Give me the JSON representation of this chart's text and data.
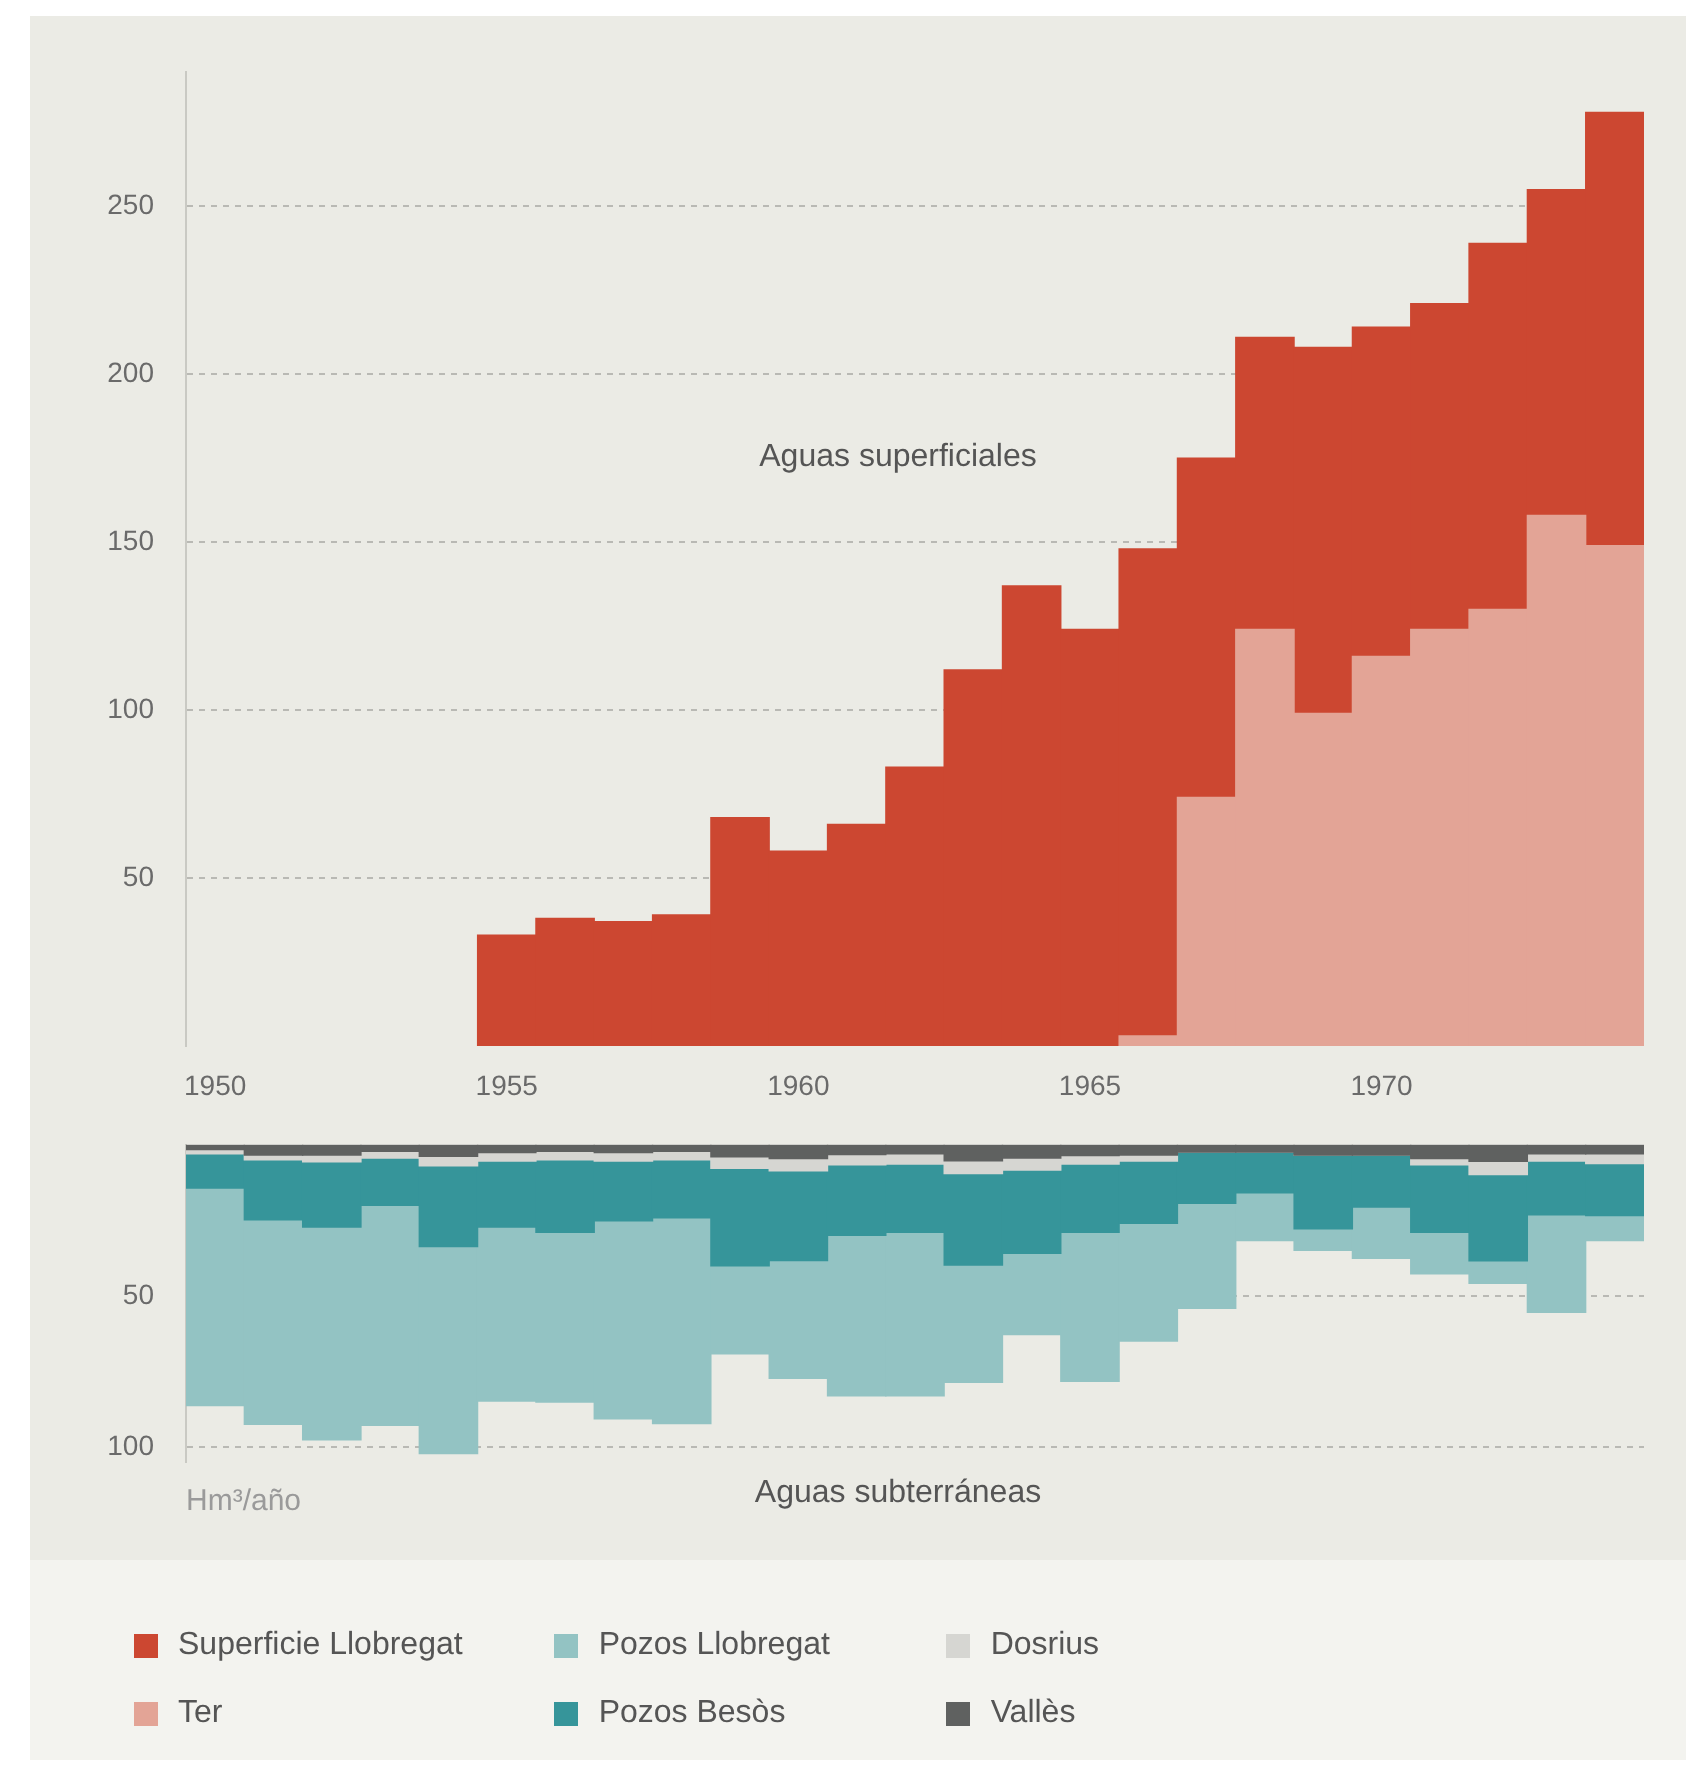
{
  "chart_data": [
    {
      "type": "bar",
      "stacked": true,
      "categories": [
        "1950",
        null,
        null,
        null,
        null,
        "1955",
        null,
        null,
        null,
        null,
        "1960",
        null,
        null,
        null,
        null,
        "1965",
        null,
        null,
        null,
        null,
        "1970",
        null,
        null,
        null,
        null
      ],
      "series": [
        {
          "name": "Ter",
          "color": "#e3a496",
          "values": [
            null,
            null,
            null,
            null,
            null,
            null,
            null,
            null,
            null,
            null,
            null,
            null,
            null,
            null,
            null,
            null,
            3,
            74,
            124,
            99,
            116,
            124,
            130,
            158,
            149
          ]
        },
        {
          "name": "Superficie Llobregat",
          "color": "#cc4731",
          "values": [
            null,
            null,
            null,
            null,
            null,
            33,
            38,
            37,
            39,
            68,
            58,
            66,
            83,
            112,
            137,
            124,
            145,
            101,
            87,
            109,
            98,
            97,
            109,
            97,
            129
          ]
        }
      ],
      "ylim": [
        0,
        290
      ],
      "yticks": [
        50,
        100,
        150,
        200,
        250
      ],
      "grid": "y",
      "legend": "bottom",
      "annotations": [
        "Aguas superficiales"
      ]
    },
    {
      "type": "bar",
      "stacked": true,
      "categories": [
        "1950",
        null,
        null,
        null,
        null,
        "1955",
        null,
        null,
        null,
        null,
        "1960",
        null,
        null,
        null,
        null,
        "1965",
        null,
        null,
        null,
        null,
        "1970",
        null,
        null,
        null,
        null
      ],
      "series": [
        {
          "name": "Vallès",
          "color": "#5f6160",
          "values": [
            1.6,
            3.4,
            3.4,
            2.2,
            3.8,
            2.6,
            2.2,
            2.6,
            2.2,
            4,
            4.6,
            3.2,
            3,
            5.3,
            4.4,
            3.6,
            3.4,
            2.4,
            2.4,
            3.4,
            3.4,
            4.6,
            5.5,
            3,
            3
          ]
        },
        {
          "name": "Dosrius",
          "color": "#d6d6d2",
          "values": [
            1.4,
            1.6,
            2.2,
            2.2,
            3.2,
            2.8,
            2.8,
            2.8,
            2.8,
            3.8,
            4,
            3.4,
            3.4,
            4.2,
            4,
            2.8,
            2,
            0,
            0,
            0,
            0,
            2,
            4.4,
            2.4,
            3.2
          ]
        },
        {
          "name": "Pozos Besòs",
          "color": "#36959a",
          "values": [
            11.3,
            19.8,
            21.6,
            15.6,
            26.7,
            21.8,
            24,
            19.8,
            19.2,
            32.3,
            29.7,
            23.4,
            22.6,
            30.3,
            27.5,
            22.6,
            20.6,
            17,
            13.5,
            24.4,
            17.2,
            22.4,
            28.5,
            17.8,
            17.2
          ]
        },
        {
          "name": "Pozos Llobregat",
          "color": "#93c3c3",
          "values": [
            72,
            67.7,
            70.5,
            72.9,
            68.5,
            57.6,
            56.2,
            65.5,
            68.1,
            29.1,
            39,
            53.1,
            54.1,
            38.8,
            26.9,
            49.3,
            39,
            34.7,
            15.8,
            7.1,
            17,
            13.7,
            7.5,
            32.3,
            8.3
          ]
        }
      ],
      "ylim": [
        105,
        0
      ],
      "yticks": [
        50,
        100
      ],
      "grid": "y",
      "tick_labels": "y",
      "legend": "bottom",
      "annotations": [
        "Aguas subterráneas",
        "Hm³/año"
      ]
    }
  ]
}
